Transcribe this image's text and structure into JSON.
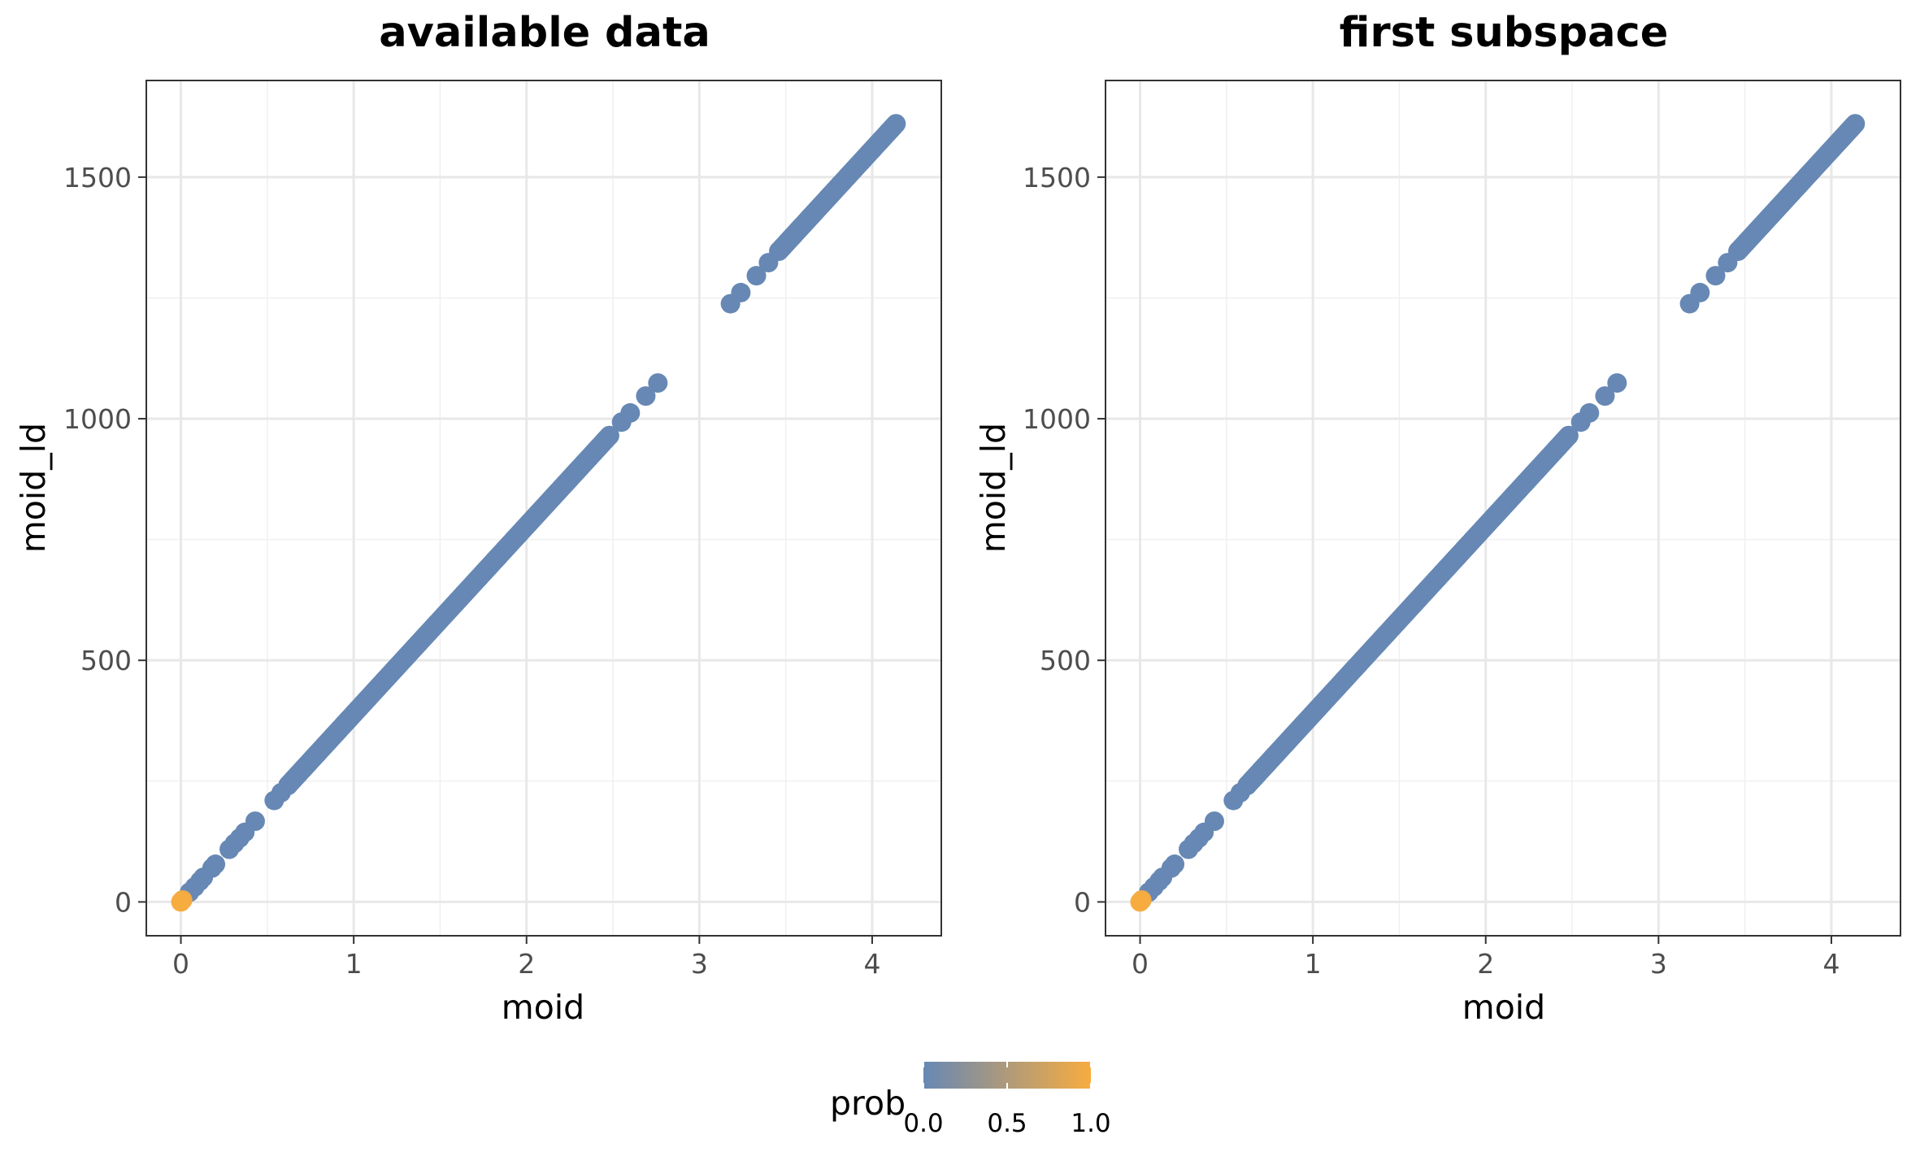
{
  "chart_data": [
    {
      "type": "scatter",
      "title": "available data",
      "xlabel": "moid",
      "ylabel": "moid_ld",
      "xlim": [
        -0.2,
        4.4
      ],
      "ylim": [
        -70,
        1700
      ],
      "xticks": [
        0,
        1,
        2,
        3,
        4
      ],
      "yticks": [
        0,
        500,
        1000,
        1500
      ],
      "grid": true,
      "points": [
        {
          "x": 0.0,
          "y": 0,
          "prob": 1.0
        },
        {
          "x": 0.01,
          "y": 4,
          "prob": 0.95
        },
        {
          "x": 0.05,
          "y": 20,
          "prob": 0.0
        },
        {
          "x": 0.08,
          "y": 31,
          "prob": 0.0
        },
        {
          "x": 0.11,
          "y": 43,
          "prob": 0.0
        },
        {
          "x": 0.13,
          "y": 51,
          "prob": 0.0
        },
        {
          "x": 0.18,
          "y": 70,
          "prob": 0.0
        },
        {
          "x": 0.2,
          "y": 78,
          "prob": 0.0
        },
        {
          "x": 0.28,
          "y": 109,
          "prob": 0.0
        },
        {
          "x": 0.31,
          "y": 121,
          "prob": 0.0
        },
        {
          "x": 0.34,
          "y": 132,
          "prob": 0.0
        },
        {
          "x": 0.37,
          "y": 144,
          "prob": 0.0
        },
        {
          "x": 0.43,
          "y": 167,
          "prob": 0.0
        },
        {
          "x": 0.54,
          "y": 210,
          "prob": 0.0
        },
        {
          "x": 0.58,
          "y": 226,
          "prob": 0.0
        },
        {
          "x": 0.62,
          "y": 241,
          "prob": 0.0
        },
        {
          "x": 2.48,
          "y": 965,
          "prob": 0.0
        },
        {
          "x": 2.55,
          "y": 993,
          "prob": 0.0
        },
        {
          "x": 2.6,
          "y": 1012,
          "prob": 0.0
        },
        {
          "x": 2.69,
          "y": 1047,
          "prob": 0.0
        },
        {
          "x": 2.76,
          "y": 1074,
          "prob": 0.0
        },
        {
          "x": 3.18,
          "y": 1238,
          "prob": 0.0
        },
        {
          "x": 3.24,
          "y": 1261,
          "prob": 0.0
        },
        {
          "x": 3.33,
          "y": 1296,
          "prob": 0.0
        },
        {
          "x": 3.4,
          "y": 1323,
          "prob": 0.0
        },
        {
          "x": 3.46,
          "y": 1347,
          "prob": 0.0
        }
      ],
      "dense_segments": [
        {
          "x_start": 0.62,
          "x_end": 2.48,
          "slope": 389.2,
          "prob": 0.0
        },
        {
          "x_start": 3.46,
          "x_end": 4.14,
          "slope": 389.2,
          "prob": 0.0
        }
      ]
    },
    {
      "type": "scatter",
      "title": "first subspace",
      "xlabel": "moid",
      "ylabel": "moid_ld",
      "xlim": [
        -0.2,
        4.4
      ],
      "ylim": [
        -70,
        1700
      ],
      "xticks": [
        0,
        1,
        2,
        3,
        4
      ],
      "yticks": [
        0,
        500,
        1000,
        1500
      ],
      "grid": true,
      "points": [
        {
          "x": 0.0,
          "y": 0,
          "prob": 1.0
        },
        {
          "x": 0.01,
          "y": 4,
          "prob": 0.95
        },
        {
          "x": 0.05,
          "y": 20,
          "prob": 0.0
        },
        {
          "x": 0.08,
          "y": 31,
          "prob": 0.0
        },
        {
          "x": 0.11,
          "y": 43,
          "prob": 0.0
        },
        {
          "x": 0.13,
          "y": 51,
          "prob": 0.0
        },
        {
          "x": 0.18,
          "y": 70,
          "prob": 0.0
        },
        {
          "x": 0.2,
          "y": 78,
          "prob": 0.0
        },
        {
          "x": 0.28,
          "y": 109,
          "prob": 0.0
        },
        {
          "x": 0.31,
          "y": 121,
          "prob": 0.0
        },
        {
          "x": 0.34,
          "y": 132,
          "prob": 0.0
        },
        {
          "x": 0.37,
          "y": 144,
          "prob": 0.0
        },
        {
          "x": 0.43,
          "y": 167,
          "prob": 0.0
        },
        {
          "x": 0.54,
          "y": 210,
          "prob": 0.0
        },
        {
          "x": 0.58,
          "y": 226,
          "prob": 0.0
        },
        {
          "x": 0.62,
          "y": 241,
          "prob": 0.0
        },
        {
          "x": 2.48,
          "y": 965,
          "prob": 0.0
        },
        {
          "x": 2.55,
          "y": 993,
          "prob": 0.0
        },
        {
          "x": 2.6,
          "y": 1012,
          "prob": 0.0
        },
        {
          "x": 2.69,
          "y": 1047,
          "prob": 0.0
        },
        {
          "x": 2.76,
          "y": 1074,
          "prob": 0.0
        },
        {
          "x": 3.18,
          "y": 1238,
          "prob": 0.0
        },
        {
          "x": 3.24,
          "y": 1261,
          "prob": 0.0
        },
        {
          "x": 3.33,
          "y": 1296,
          "prob": 0.0
        },
        {
          "x": 3.4,
          "y": 1323,
          "prob": 0.0
        },
        {
          "x": 3.46,
          "y": 1347,
          "prob": 0.0
        }
      ],
      "dense_segments": [
        {
          "x_start": 0.62,
          "x_end": 2.48,
          "slope": 389.2,
          "prob": 0.0
        },
        {
          "x_start": 3.46,
          "x_end": 4.14,
          "slope": 389.2,
          "prob": 0.0
        }
      ]
    }
  ],
  "legend": {
    "title": "prob",
    "position": "bottom",
    "type": "colorbar",
    "range": [
      0.0,
      1.0
    ],
    "ticks": [
      "0.0",
      "0.5",
      "1.0"
    ],
    "low_color": "#6788b4",
    "high_color": "#f7ac40"
  }
}
